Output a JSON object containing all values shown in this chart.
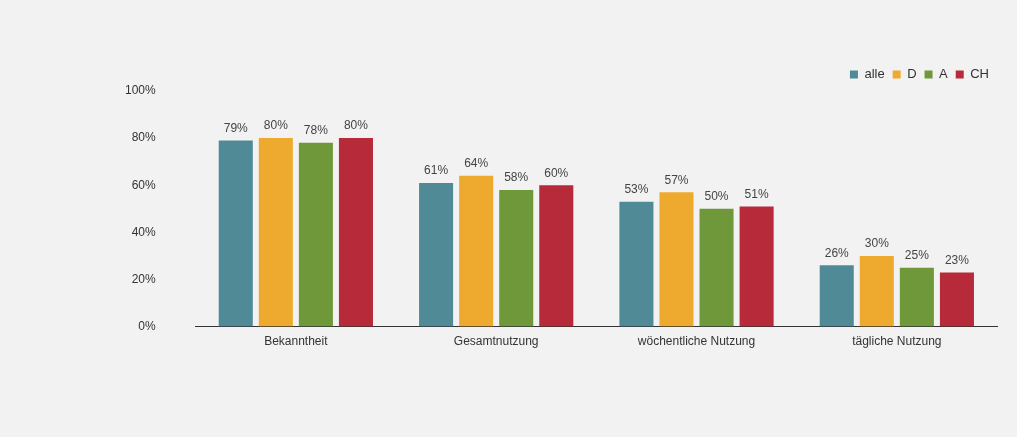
{
  "chart_data": {
    "type": "bar",
    "categories": [
      "Bekanntheit",
      "Gesamtnutzung",
      "wöchentliche Nutzung",
      "tägliche Nutzung"
    ],
    "series": [
      {
        "name": "alle",
        "color": "#4f8a96",
        "values": [
          79,
          61,
          53,
          26
        ],
        "value_labels": [
          "79%",
          "61%",
          "53%",
          "26%"
        ]
      },
      {
        "name": "D",
        "color": "#eeaa2e",
        "values": [
          80,
          64,
          57,
          30
        ],
        "value_labels": [
          "80%",
          "64%",
          "57%",
          "30%"
        ]
      },
      {
        "name": "A",
        "color": "#6f983a",
        "values": [
          78,
          58,
          50,
          25
        ],
        "value_labels": [
          "78%",
          "58%",
          "50%",
          "25%"
        ]
      },
      {
        "name": "CH",
        "color": "#b72a3a",
        "values": [
          80,
          60,
          51,
          23
        ],
        "value_labels": [
          "80%",
          "60%",
          "51%",
          "23%"
        ]
      }
    ],
    "ylim": [
      0,
      100
    ],
    "yticks": [
      {
        "value": 0,
        "label": "0%"
      },
      {
        "value": 20,
        "label": "20%"
      },
      {
        "value": 40,
        "label": "40%"
      },
      {
        "value": 60,
        "label": "60%"
      },
      {
        "value": 80,
        "label": "80%"
      },
      {
        "value": 100,
        "label": "100%"
      }
    ],
    "grid": false,
    "legend": "top right"
  }
}
